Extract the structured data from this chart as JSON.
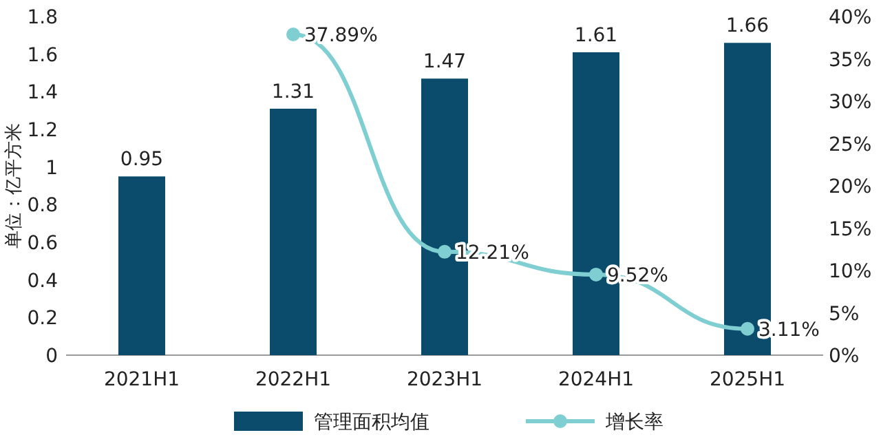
{
  "chart_data": {
    "type": "bar",
    "ylabel": "单位：亿平方米",
    "categories": [
      "2021H1",
      "2022H1",
      "2023H1",
      "2024H1",
      "2025H1"
    ],
    "series": [
      {
        "name": "管理面积均值",
        "color": "#0b4c6c",
        "values": [
          0.95,
          1.31,
          1.47,
          1.61,
          1.66
        ],
        "value_labels": [
          "0.95",
          "1.31",
          "1.47",
          "1.61",
          "1.66"
        ]
      },
      {
        "name": "增长率",
        "type": "line",
        "axis": "y2",
        "color": "#7fcfd2",
        "marker": "circle",
        "values": [
          null,
          37.89,
          12.21,
          9.52,
          3.11
        ],
        "value_labels": [
          null,
          "37.89%",
          "12.21%",
          "9.52%",
          "3.11%"
        ]
      }
    ],
    "ylim": [
      0,
      1.8
    ],
    "yticks": [
      0,
      0.2,
      0.4,
      0.6,
      0.8,
      1,
      1.2,
      1.4,
      1.6,
      1.8
    ],
    "y2lim": [
      0,
      40
    ],
    "y2ticks": [
      {
        "value": 0,
        "label": "0%"
      },
      {
        "value": 5,
        "label": "5%"
      },
      {
        "value": 10,
        "label": "10%"
      },
      {
        "value": 15,
        "label": "15%"
      },
      {
        "value": 20,
        "label": "20%"
      },
      {
        "value": 25,
        "label": "25%"
      },
      {
        "value": 30,
        "label": "30%"
      },
      {
        "value": 35,
        "label": "35%"
      },
      {
        "value": 40,
        "label": "40%"
      }
    ],
    "legend": "bottom",
    "grid": false
  }
}
